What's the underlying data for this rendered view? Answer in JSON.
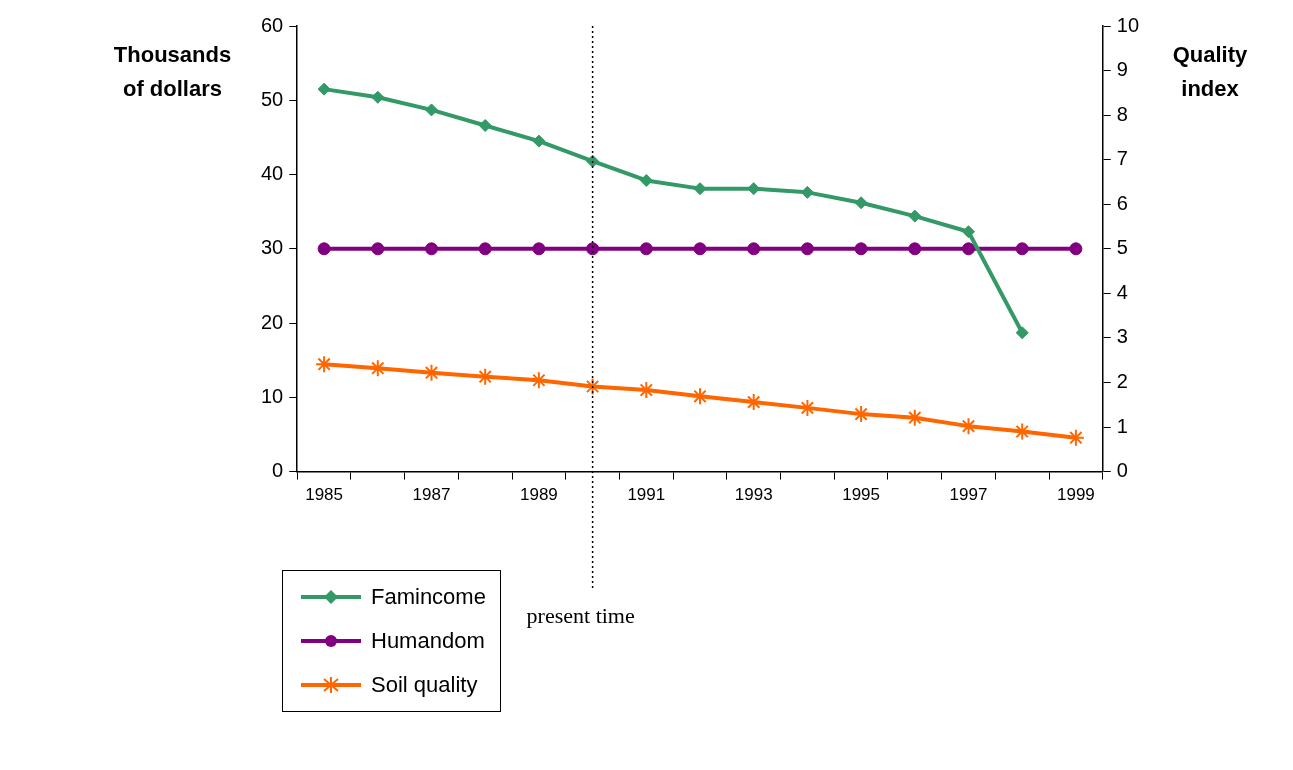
{
  "chart_data": {
    "type": "line",
    "x": [
      1985,
      1986,
      1987,
      1988,
      1989,
      1990,
      1991,
      1992,
      1993,
      1994,
      1995,
      1996,
      1997,
      1998,
      1999
    ],
    "xlim": [
      1984.5,
      1999.5
    ],
    "xticks": [
      {
        "value": 1984.5,
        "label": null
      },
      1985,
      {
        "value": 1985.5,
        "label": null
      },
      {
        "value": 1986.5,
        "label": null
      },
      1987,
      {
        "value": 1987.5,
        "label": null
      },
      {
        "value": 1988.5,
        "label": null
      },
      1989,
      {
        "value": 1989.5,
        "label": null
      },
      {
        "value": 1990.5,
        "label": null
      },
      1991,
      {
        "value": 1991.5,
        "label": null
      },
      {
        "value": 1992.5,
        "label": null
      },
      1993,
      {
        "value": 1993.5,
        "label": null
      },
      {
        "value": 1994.5,
        "label": null
      },
      1995,
      {
        "value": 1995.5,
        "label": null
      },
      {
        "value": 1996.5,
        "label": null
      },
      1997,
      {
        "value": 1997.5,
        "label": null
      },
      {
        "value": 1998.5,
        "label": null
      },
      1999,
      {
        "value": 1999.5,
        "label": null
      }
    ],
    "ylabel": "Thousands of dollars",
    "y2label": "Quality index",
    "ylim": [
      0,
      60
    ],
    "yticks": [
      0,
      10,
      20,
      30,
      40,
      50,
      60
    ],
    "y2lim": [
      0,
      10
    ],
    "y2ticks": [
      0,
      1,
      2,
      3,
      4,
      5,
      6,
      7,
      8,
      9,
      10
    ],
    "series": [
      {
        "name": "Famincome",
        "color": "#339966",
        "marker": "diamond",
        "values": [
          51.5,
          50.4,
          48.7,
          46.6,
          44.5,
          41.8,
          39.2,
          38.1,
          38.1,
          37.6,
          36.2,
          34.4,
          32.3,
          18.7,
          null
        ]
      },
      {
        "name": "Humandom",
        "color": "#800080",
        "marker": "circle",
        "axis": "y2",
        "values": [
          5,
          5,
          5,
          5,
          5,
          5,
          5,
          5,
          5,
          5,
          5,
          5,
          5,
          5,
          5
        ]
      },
      {
        "name": "Soil quality",
        "color": "#ff6600",
        "marker": "cross",
        "axis": "y2",
        "values": [
          2.41,
          2.32,
          2.22,
          2.13,
          2.05,
          1.91,
          1.83,
          1.69,
          1.56,
          1.43,
          1.29,
          1.21,
          1.02,
          0.9,
          0.76
        ]
      }
    ],
    "ref_lines": [
      {
        "axis": "x",
        "value": 1990,
        "label": "present time",
        "color": "#000000",
        "line_style": "dotted"
      }
    ],
    "grid": false,
    "legend": "bottom left"
  }
}
